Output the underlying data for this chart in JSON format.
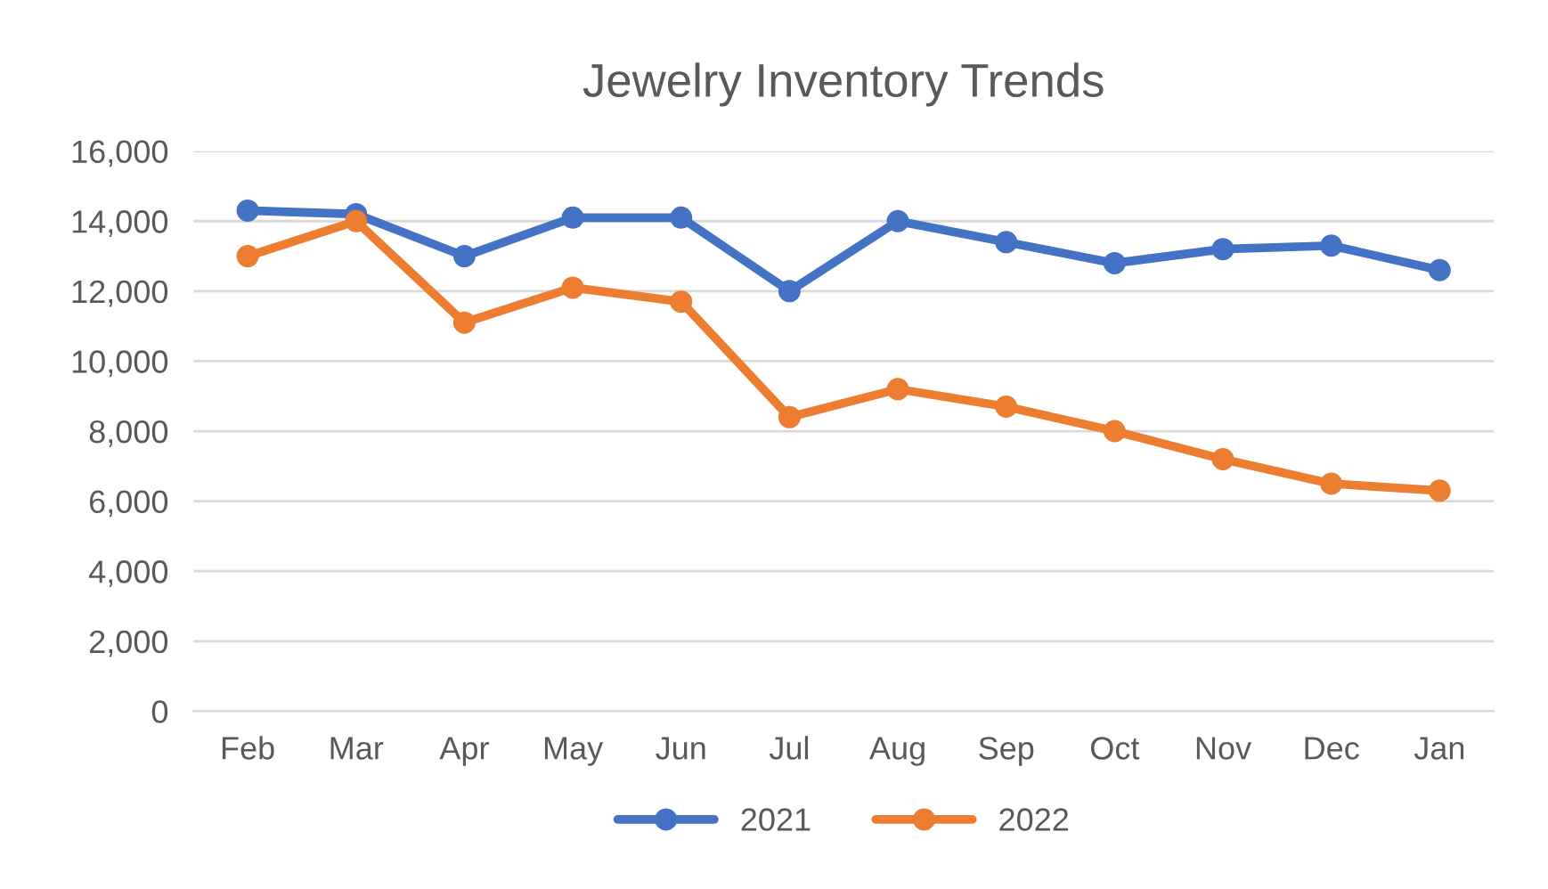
{
  "chart_data": {
    "type": "line",
    "title": "Jewelry Inventory Trends",
    "categories": [
      "Feb",
      "Mar",
      "Apr",
      "May",
      "Jun",
      "Jul",
      "Aug",
      "Sep",
      "Oct",
      "Nov",
      "Dec",
      "Jan"
    ],
    "series": [
      {
        "name": "2021",
        "color": "#4472c4",
        "values": [
          14300,
          14200,
          13000,
          14100,
          14100,
          12000,
          14000,
          13400,
          12800,
          13200,
          13300,
          12600
        ]
      },
      {
        "name": "2022",
        "color": "#ed7d31",
        "values": [
          13000,
          14000,
          11100,
          12100,
          11700,
          8400,
          9200,
          8700,
          8000,
          7200,
          6500,
          6300
        ]
      }
    ],
    "ylim": [
      0,
      16000
    ],
    "yticks": [
      {
        "value": 0,
        "label": "0"
      },
      {
        "value": 2000,
        "label": "2,000"
      },
      {
        "value": 4000,
        "label": "4,000"
      },
      {
        "value": 6000,
        "label": "6,000"
      },
      {
        "value": 8000,
        "label": "8,000"
      },
      {
        "value": 10000,
        "label": "10,000"
      },
      {
        "value": 12000,
        "label": "12,000"
      },
      {
        "value": 14000,
        "label": "14,000"
      },
      {
        "value": 16000,
        "label": "16,000"
      }
    ],
    "grid": "y",
    "legend": "bottom",
    "marker": "circle",
    "line_style": "solid"
  }
}
